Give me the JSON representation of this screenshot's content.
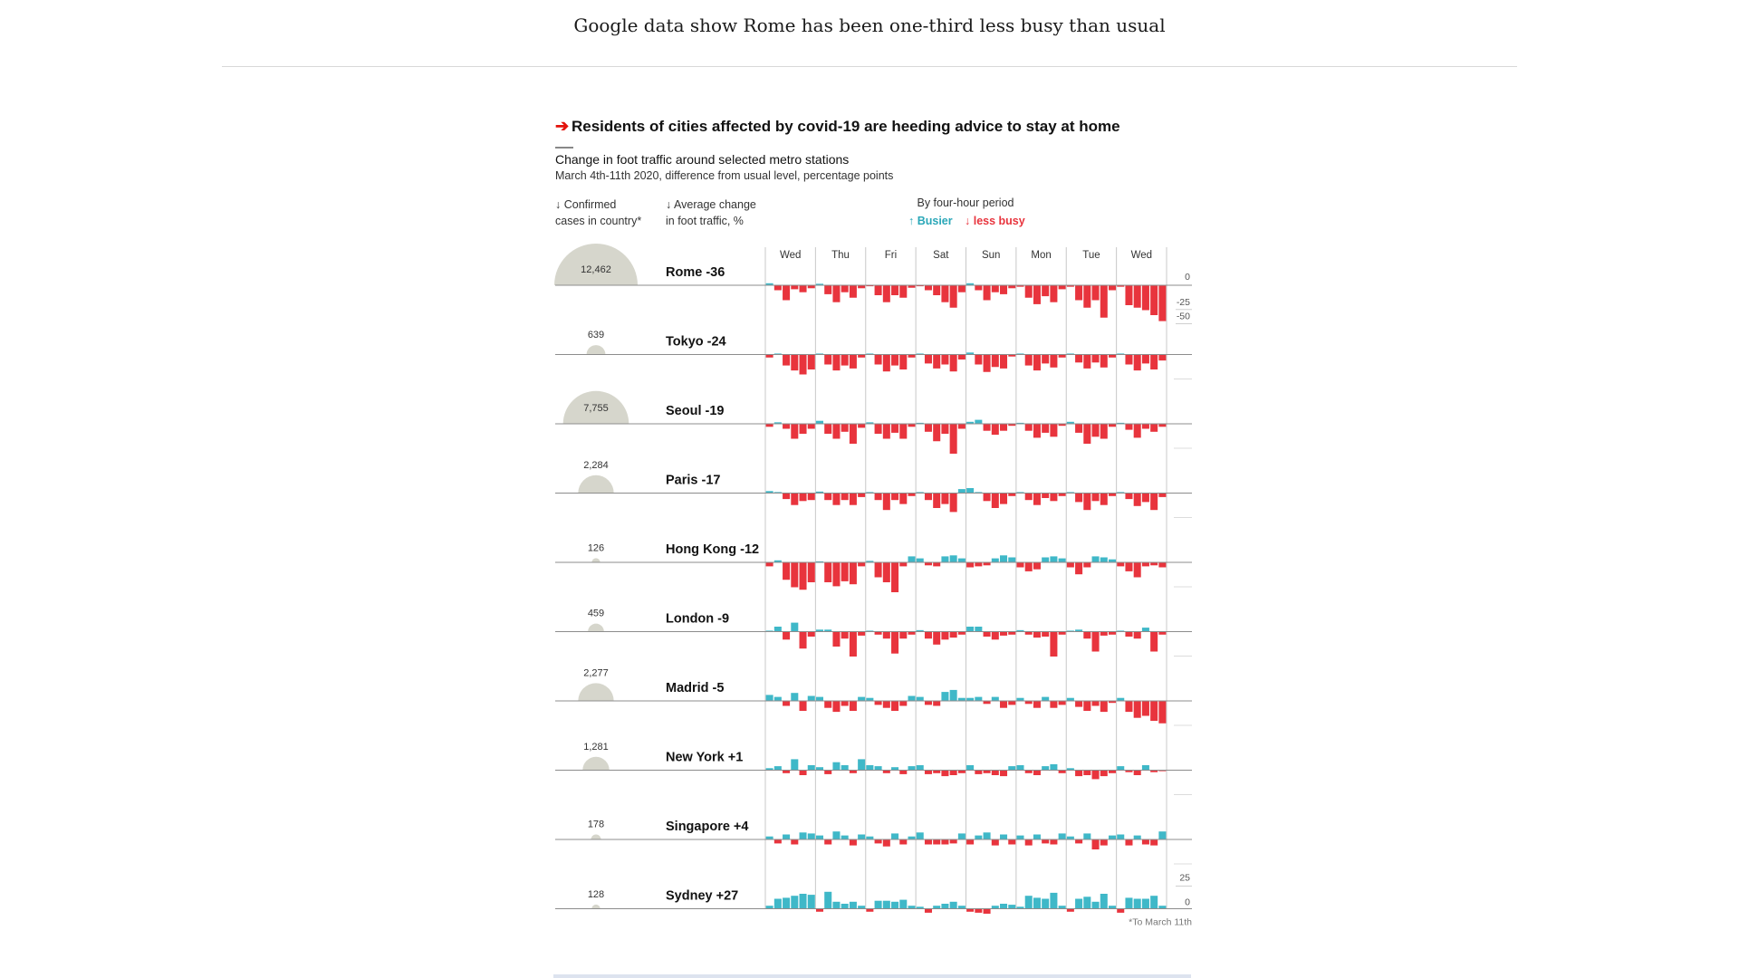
{
  "page": {
    "headline": "Google data show Rome has been one-third less busy than usual"
  },
  "chart_data": {
    "type": "bar",
    "title": "Residents of cities affected by covid-19 are heeding advice to stay at home",
    "subtitle": "Change in foot traffic around selected metro stations",
    "description": "March 4th-11th 2020, difference from usual level, percentage points",
    "column_headers": {
      "cases": "↓ Confirmed|cases in country*",
      "average": "↓ Average change|in foot traffic, %",
      "period": "By four-hour period"
    },
    "legend": {
      "busier": "↑ Busier",
      "less_busy": "↓ less busy"
    },
    "days": [
      "Wed",
      "Thu",
      "Fri",
      "Sat",
      "Sun",
      "Mon",
      "Tue",
      "Wed"
    ],
    "y_ticks": [
      "0",
      "-25",
      "-50"
    ],
    "sydney_ticks": [
      "25",
      "0"
    ],
    "footnote": "*To March 11th",
    "colors": {
      "busier": "#3fb8c8",
      "less_busy": "#e8343d",
      "bubble": "#d6d6cc",
      "axis": "#8c8c8c",
      "grid": "#c8c8c8"
    },
    "series": [
      {
        "city": "Rome",
        "label": "Rome -36",
        "avg": -36,
        "cases": 12462,
        "cases_label": "12,462",
        "values": [
          4,
          -10,
          -30,
          -8,
          -14,
          -6,
          3,
          -18,
          -34,
          -14,
          -25,
          -6,
          -2,
          -20,
          -34,
          -20,
          -25,
          -5,
          -2,
          -10,
          -20,
          -34,
          -45,
          -14,
          4,
          -10,
          -30,
          -14,
          -18,
          -6,
          -3,
          -25,
          -38,
          -22,
          -34,
          -8,
          -3,
          -30,
          -45,
          -30,
          -65,
          -10,
          -3,
          -40,
          -45,
          -50,
          -60,
          -72
        ]
      },
      {
        "city": "Tokyo",
        "label": "Tokyo -24",
        "avg": -24,
        "cases": 639,
        "cases_label": "639",
        "values": [
          -6,
          2,
          -22,
          -32,
          -40,
          -30,
          2,
          -20,
          -32,
          -22,
          -28,
          -6,
          2,
          -20,
          -34,
          -22,
          -30,
          -6,
          2,
          -18,
          -28,
          -20,
          -34,
          -10,
          4,
          -20,
          -35,
          -25,
          -28,
          -4,
          2,
          -22,
          -32,
          -18,
          -26,
          -6,
          2,
          -16,
          -28,
          -16,
          -26,
          -6,
          2,
          -20,
          -32,
          -18,
          -30,
          -12
        ]
      },
      {
        "city": "Seoul",
        "label": "Seoul -19",
        "avg": -19,
        "cases": 7755,
        "cases_label": "7,755",
        "values": [
          -6,
          3,
          -10,
          -30,
          -20,
          -10,
          6,
          -20,
          -30,
          -16,
          -40,
          -8,
          3,
          -20,
          -30,
          -18,
          -30,
          -6,
          2,
          -16,
          -35,
          -20,
          -60,
          -10,
          4,
          8,
          -14,
          -22,
          -14,
          -4,
          2,
          -14,
          -28,
          -18,
          -26,
          -4,
          4,
          -18,
          -40,
          -26,
          -30,
          -6,
          2,
          -12,
          -28,
          -10,
          -16,
          -6
        ]
      },
      {
        "city": "Paris",
        "label": "Paris -17",
        "avg": -17,
        "cases": 2284,
        "cases_label": "2,284",
        "values": [
          4,
          2,
          -12,
          -24,
          -16,
          -14,
          3,
          -14,
          -24,
          -14,
          -24,
          -8,
          2,
          -14,
          -34,
          -14,
          -22,
          -6,
          2,
          -14,
          -30,
          -22,
          -38,
          8,
          10,
          2,
          -16,
          -30,
          -22,
          -6,
          2,
          -14,
          -24,
          -10,
          -16,
          -6,
          2,
          -18,
          -34,
          -16,
          -24,
          -6,
          2,
          -12,
          -26,
          -18,
          -34,
          -8
        ]
      },
      {
        "city": "Hong Kong",
        "label": "Hong Kong -12",
        "avg": -12,
        "cases": 126,
        "cases_label": "126",
        "values": [
          -8,
          4,
          -35,
          -50,
          -55,
          -40,
          2,
          -40,
          -48,
          -38,
          -44,
          -8,
          3,
          -30,
          -40,
          -60,
          -8,
          12,
          8,
          -6,
          -8,
          12,
          14,
          8,
          -10,
          -8,
          -6,
          8,
          14,
          10,
          -10,
          -18,
          -14,
          10,
          12,
          8,
          -10,
          -24,
          -10,
          12,
          10,
          6,
          -8,
          -18,
          -30,
          -8,
          -6,
          -10
        ]
      },
      {
        "city": "London",
        "label": "London -9",
        "avg": -9,
        "cases": 459,
        "cases_label": "459",
        "values": [
          2,
          10,
          -16,
          18,
          -34,
          -10,
          4,
          4,
          -30,
          -14,
          -50,
          -8,
          2,
          -6,
          -14,
          -44,
          -14,
          -6,
          3,
          -14,
          -26,
          -16,
          -12,
          -6,
          10,
          10,
          -10,
          -16,
          -8,
          -6,
          3,
          -6,
          -12,
          -10,
          -50,
          -6,
          2,
          4,
          -14,
          -40,
          -8,
          -6,
          2,
          -10,
          -14,
          8,
          -40,
          -6
        ]
      },
      {
        "city": "Madrid",
        "label": "Madrid -5",
        "avg": -5,
        "cases": 2277,
        "cases_label": "2,277",
        "values": [
          12,
          8,
          -10,
          16,
          -20,
          10,
          8,
          -14,
          -22,
          -10,
          -20,
          8,
          6,
          -8,
          -14,
          -20,
          -10,
          10,
          8,
          -8,
          -10,
          18,
          22,
          6,
          6,
          8,
          -6,
          8,
          -14,
          -8,
          6,
          -6,
          -14,
          8,
          -14,
          -8,
          6,
          -12,
          -20,
          -10,
          -22,
          -4,
          6,
          -22,
          -34,
          -30,
          -40,
          -45
        ]
      },
      {
        "city": "New York",
        "label": "New York +1",
        "avg": 1,
        "cases": 1281,
        "cases_label": "1,281",
        "values": [
          4,
          8,
          -6,
          22,
          -10,
          10,
          6,
          -8,
          16,
          10,
          -6,
          22,
          10,
          8,
          -6,
          6,
          -8,
          8,
          10,
          -8,
          -6,
          -12,
          -10,
          -6,
          10,
          -8,
          -6,
          -10,
          -12,
          8,
          10,
          -6,
          -10,
          8,
          12,
          -6,
          4,
          -12,
          -10,
          -18,
          -12,
          -6,
          8,
          -4,
          -10,
          10,
          -4,
          -2
        ]
      },
      {
        "city": "Singapore",
        "label": "Singapore +4",
        "avg": 4,
        "cases": 178,
        "cases_label": "178",
        "values": [
          6,
          -8,
          10,
          -10,
          14,
          12,
          8,
          -10,
          16,
          8,
          -12,
          10,
          6,
          -8,
          -14,
          12,
          -10,
          6,
          14,
          -10,
          -10,
          -10,
          -8,
          12,
          -10,
          8,
          14,
          -12,
          10,
          -10,
          8,
          -12,
          10,
          -8,
          -10,
          12,
          6,
          -8,
          12,
          -20,
          -12,
          8,
          10,
          -12,
          8,
          -10,
          -12,
          16
        ]
      },
      {
        "city": "Sydney",
        "label": "Sydney +27",
        "avg": 27,
        "cases": 128,
        "cases_label": "128",
        "values": [
          6,
          20,
          22,
          26,
          30,
          28,
          -6,
          34,
          14,
          10,
          14,
          6,
          -6,
          16,
          16,
          14,
          18,
          6,
          4,
          -8,
          6,
          10,
          14,
          6,
          -6,
          -8,
          -10,
          6,
          10,
          8,
          4,
          26,
          22,
          20,
          32,
          6,
          -6,
          20,
          24,
          14,
          30,
          6,
          -8,
          22,
          20,
          20,
          26,
          6
        ]
      }
    ]
  }
}
